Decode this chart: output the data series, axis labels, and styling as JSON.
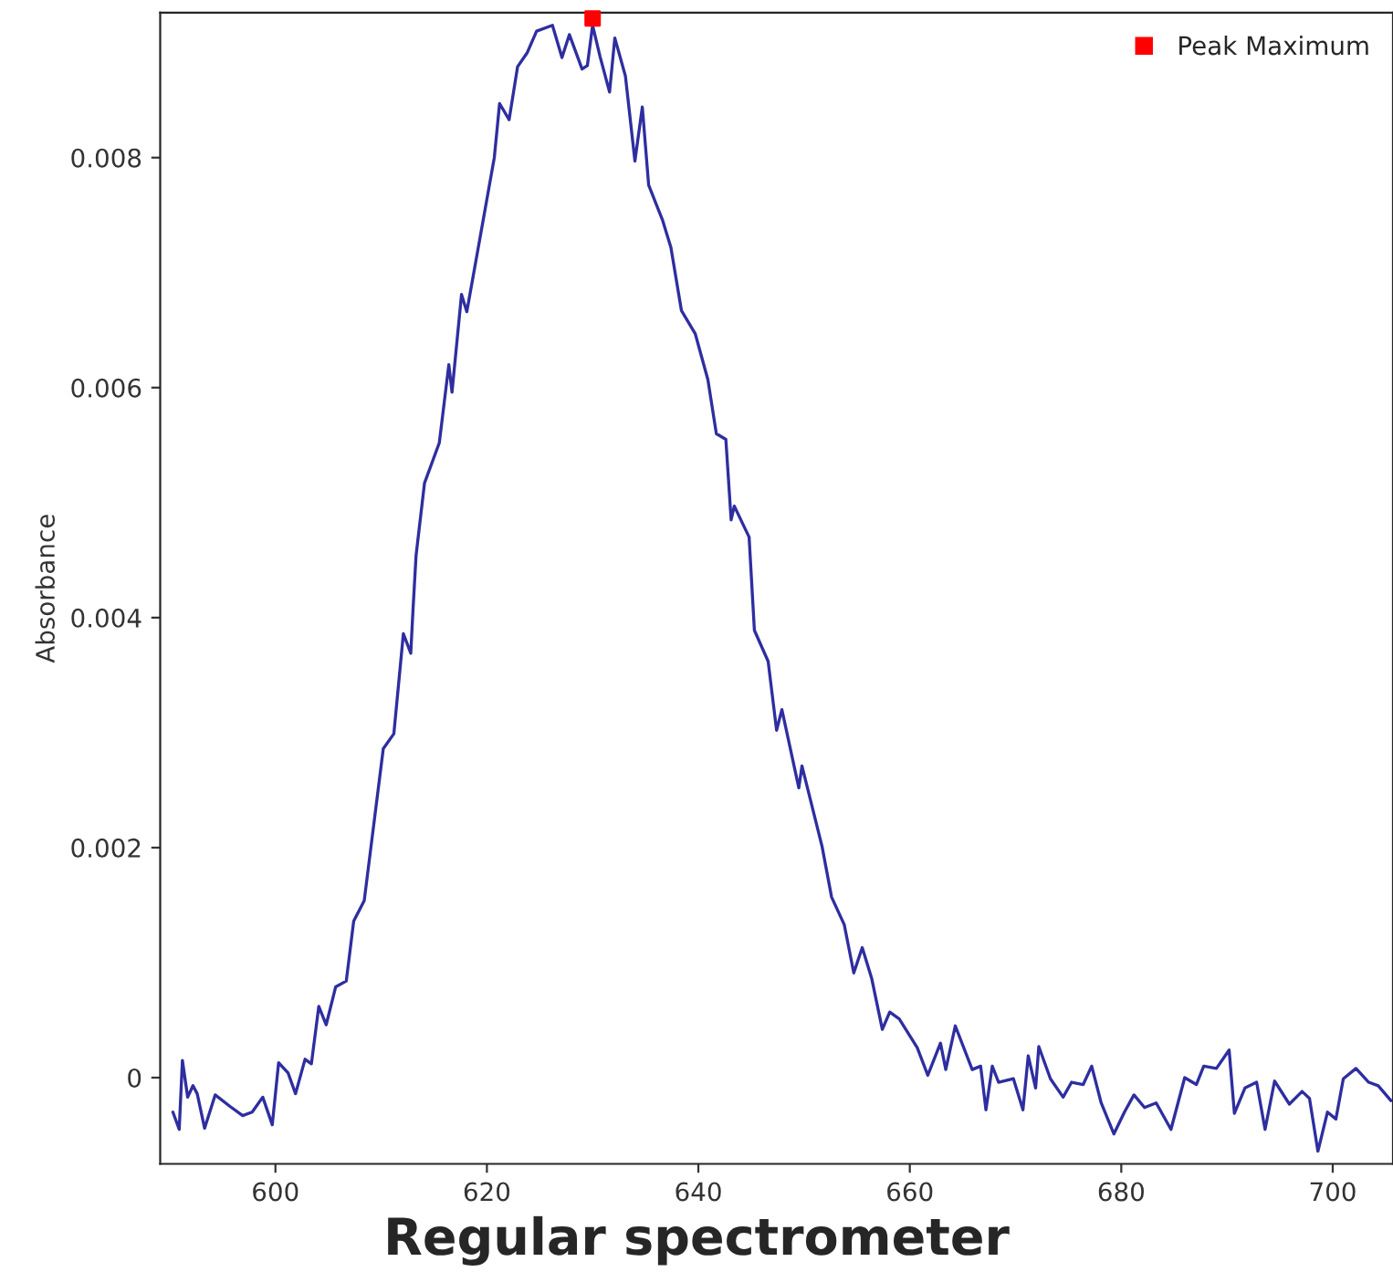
{
  "chart_data": {
    "type": "line",
    "title": "Regular spectrometer",
    "ylabel": "Absorbance",
    "xlim": [
      589.1,
      705.7
    ],
    "ylim": [
      -0.00075,
      0.00926
    ],
    "xticks": [
      600,
      620,
      640,
      660,
      680,
      700
    ],
    "yticks": [
      0,
      0.002,
      0.004,
      0.006,
      0.008
    ],
    "grid": false,
    "legend": "top right",
    "series": [
      {
        "color": "#2e2ea0",
        "marker": "none",
        "line_style": "solid",
        "x": [
          590.3,
          590.9,
          591.2,
          591.7,
          592.2,
          592.6,
          593.3,
          594.3,
          595.7,
          596.9,
          597.8,
          598.8,
          599.7,
          600.3,
          601.2,
          601.9,
          602.8,
          603.4,
          604.1,
          604.8,
          605.7,
          606.7,
          607.4,
          608.4,
          610.2,
          611.2,
          612.1,
          612.8,
          613.0,
          613.3,
          614.1,
          615.5,
          616.4,
          616.7,
          617.6,
          618.1,
          619.5,
          620.7,
          621.2,
          622.1,
          622.9,
          623.8,
          624.7,
          626.2,
          627.1,
          627.8,
          629.0,
          629.5,
          630.0,
          630.7,
          631.6,
          632.1,
          633.1,
          634.0,
          634.7,
          635.3,
          636.6,
          637.4,
          638.4,
          639.7,
          640.9,
          641.7,
          642.6,
          643.1,
          643.4,
          644.8,
          645.3,
          646.6,
          647.4,
          647.9,
          649.5,
          649.8,
          651.7,
          652.6,
          653.8,
          654.7,
          655.5,
          656.4,
          657.4,
          658.1,
          659.0,
          660.7,
          661.7,
          662.9,
          663.4,
          664.3,
          665.9,
          666.7,
          667.2,
          667.8,
          668.4,
          669.8,
          670.7,
          671.2,
          671.9,
          672.2,
          673.3,
          674.5,
          675.3,
          676.4,
          677.2,
          678.1,
          679.3,
          680.3,
          681.2,
          682.2,
          683.3,
          684.7,
          686.0,
          687.1,
          687.8,
          689.0,
          690.2,
          690.7,
          691.7,
          692.8,
          693.6,
          694.5,
          695.9,
          697.1,
          697.8,
          698.6,
          699.5,
          700.3,
          701.0,
          702.2,
          703.4,
          704.3,
          705.5
        ],
        "values": [
          -0.0003,
          -0.00045,
          0.00015,
          -0.00017,
          -7e-05,
          -0.00014,
          -0.00044,
          -0.00015,
          -0.00025,
          -0.00033,
          -0.0003,
          -0.00017,
          -0.00041,
          0.00013,
          4e-05,
          -0.00014,
          0.00016,
          0.00012,
          0.00062,
          0.00046,
          0.00079,
          0.00084,
          0.00136,
          0.00154,
          0.00286,
          0.00299,
          0.00386,
          0.00369,
          0.00405,
          0.00454,
          0.00517,
          0.00552,
          0.0062,
          0.00596,
          0.00681,
          0.00666,
          0.00738,
          0.008,
          0.00847,
          0.00833,
          0.00879,
          0.00891,
          0.0091,
          0.00915,
          0.00887,
          0.00907,
          0.00877,
          0.0088,
          0.00915,
          0.00888,
          0.00857,
          0.00904,
          0.00871,
          0.00797,
          0.00844,
          0.00776,
          0.00746,
          0.00722,
          0.00667,
          0.00647,
          0.00607,
          0.0056,
          0.00555,
          0.00485,
          0.00497,
          0.0047,
          0.00389,
          0.00362,
          0.00302,
          0.0032,
          0.00252,
          0.00271,
          0.00201,
          0.00157,
          0.00133,
          0.00091,
          0.00113,
          0.00086,
          0.00042,
          0.00057,
          0.00051,
          0.00026,
          2e-05,
          0.0003,
          7e-05,
          0.00045,
          7e-05,
          0.0001,
          -0.00028,
          0.0001,
          -4e-05,
          -1e-05,
          -0.00028,
          0.00019,
          -9e-05,
          0.00027,
          -1e-05,
          -0.00017,
          -4e-05,
          -6e-05,
          0.0001,
          -0.00022,
          -0.00049,
          -0.0003,
          -0.00015,
          -0.00026,
          -0.00022,
          -0.00045,
          0.0,
          -6e-05,
          0.0001,
          8e-05,
          0.00024,
          -0.00031,
          -9e-05,
          -4e-05,
          -0.00045,
          -3e-05,
          -0.00023,
          -0.00012,
          -0.00018,
          -0.00064,
          -0.0003,
          -0.00036,
          -1e-05,
          8e-05,
          -4e-05,
          -7e-05,
          -0.0002
        ]
      },
      {
        "type": "scatter",
        "name": "Peak Maximum",
        "color": "#ff0000",
        "marker": "square",
        "x": [
          630.0
        ],
        "values": [
          0.00921
        ]
      }
    ]
  }
}
